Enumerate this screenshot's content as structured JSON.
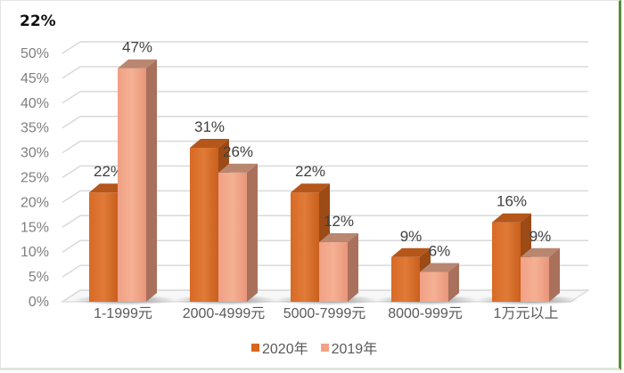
{
  "chart_data": {
    "type": "bar",
    "subtype": "3d-clustered-column",
    "title": "",
    "corner_label": "22%",
    "categories": [
      "1-1999元",
      "2000-4999元",
      "5000-7999元",
      "8000-999元",
      "1万元以上"
    ],
    "series": [
      {
        "name": "2020年",
        "color": "#d8661f",
        "values": [
          22,
          31,
          22,
          9,
          16
        ],
        "labels": [
          "22%",
          "31%",
          "22%",
          "9%",
          "16%"
        ]
      },
      {
        "name": "2019年",
        "color": "#f0a385",
        "values": [
          47,
          26,
          12,
          6,
          9
        ],
        "labels": [
          "47%",
          "26%",
          "12%",
          "6%",
          "9%"
        ]
      }
    ],
    "xlabel": "",
    "ylabel": "",
    "ylim": [
      0,
      50
    ],
    "yticks": [
      "0%",
      "5%",
      "10%",
      "15%",
      "20%",
      "25%",
      "30%",
      "35%",
      "40%",
      "45%",
      "50%"
    ],
    "grid": true,
    "legend_position": "bottom"
  }
}
